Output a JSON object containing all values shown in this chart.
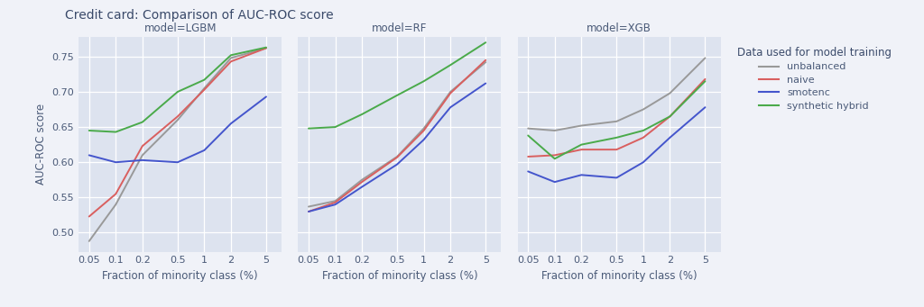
{
  "title": "Credit card: Comparison of AUC-ROC score",
  "xlabel": "Fraction of minority class (%)",
  "ylabel": "AUC-ROC score",
  "x_ticks": [
    0.05,
    0.1,
    0.2,
    0.5,
    1,
    2,
    5
  ],
  "x_tick_labels": [
    "0.05",
    "0.1",
    "0.2",
    "0.5",
    "1",
    "2",
    "5"
  ],
  "models": [
    "LGBM",
    "RF",
    "XGB"
  ],
  "series_names": [
    "unbalanced",
    "naive",
    "smotenc",
    "synthetic hybrid"
  ],
  "series_colors": [
    "#999999",
    "#d95f5f",
    "#4455cc",
    "#4aaa4a"
  ],
  "legend_title": "Data used for model training",
  "fig_facecolor": "#f0f2f8",
  "ax_facecolor": "#dde3ef",
  "data": {
    "LGBM": {
      "unbalanced": [
        0.488,
        0.54,
        0.61,
        0.66,
        0.705,
        0.748,
        0.762
      ],
      "naive": [
        0.523,
        0.555,
        0.623,
        0.665,
        0.703,
        0.743,
        0.762
      ],
      "smotenc": [
        0.61,
        0.6,
        0.603,
        0.6,
        0.617,
        0.655,
        0.693
      ],
      "synthetic hybrid": [
        0.645,
        0.643,
        0.657,
        0.7,
        0.717,
        0.752,
        0.763
      ]
    },
    "RF": {
      "unbalanced": [
        0.537,
        0.545,
        0.575,
        0.608,
        0.648,
        0.7,
        0.742
      ],
      "naive": [
        0.53,
        0.543,
        0.572,
        0.607,
        0.645,
        0.698,
        0.745
      ],
      "smotenc": [
        0.53,
        0.54,
        0.565,
        0.597,
        0.632,
        0.678,
        0.712
      ],
      "synthetic hybrid": [
        0.648,
        0.65,
        0.668,
        0.695,
        0.715,
        0.738,
        0.77
      ]
    },
    "XGB": {
      "unbalanced": [
        0.648,
        0.645,
        0.652,
        0.658,
        0.675,
        0.698,
        0.748
      ],
      "naive": [
        0.608,
        0.61,
        0.618,
        0.618,
        0.635,
        0.665,
        0.718
      ],
      "smotenc": [
        0.587,
        0.572,
        0.582,
        0.578,
        0.6,
        0.635,
        0.678
      ],
      "synthetic hybrid": [
        0.638,
        0.605,
        0.625,
        0.635,
        0.645,
        0.665,
        0.715
      ]
    }
  },
  "yticks": [
    0.5,
    0.55,
    0.6,
    0.65,
    0.7,
    0.75
  ],
  "ylim": [
    0.473,
    0.778
  ]
}
